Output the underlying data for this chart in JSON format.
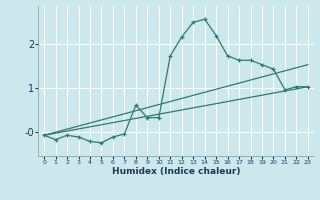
{
  "xlabel": "Humidex (Indice chaleur)",
  "bg_color": "#cce8ec",
  "grid_color": "#ffffff",
  "line_color": "#2d7b6f",
  "xlim": [
    -0.5,
    23.5
  ],
  "ylim": [
    -0.55,
    2.85
  ],
  "yticks": [
    0,
    1,
    2
  ],
  "ytick_labels": [
    "-0",
    "1",
    "2"
  ],
  "xticks": [
    0,
    1,
    2,
    3,
    4,
    5,
    6,
    7,
    8,
    9,
    10,
    11,
    12,
    13,
    14,
    15,
    16,
    17,
    18,
    19,
    20,
    21,
    22,
    23
  ],
  "line1_x": [
    0,
    1,
    2,
    3,
    4,
    5,
    6,
    7,
    8,
    9,
    10,
    11,
    12,
    13,
    14,
    15,
    16,
    17,
    18,
    19,
    20,
    21,
    22,
    23
  ],
  "line1_y": [
    -0.08,
    -0.18,
    -0.08,
    -0.12,
    -0.22,
    -0.25,
    -0.12,
    -0.05,
    0.6,
    0.32,
    0.32,
    1.72,
    2.15,
    2.48,
    2.55,
    2.18,
    1.72,
    1.62,
    1.62,
    1.52,
    1.42,
    0.95,
    1.02,
    1.02
  ],
  "line2_x": [
    0,
    23
  ],
  "line2_y": [
    -0.08,
    1.52
  ],
  "line3_x": [
    0,
    23
  ],
  "line3_y": [
    -0.08,
    1.02
  ],
  "line4_x": [
    0,
    23
  ],
  "line4_y": [
    -0.08,
    1.02
  ]
}
